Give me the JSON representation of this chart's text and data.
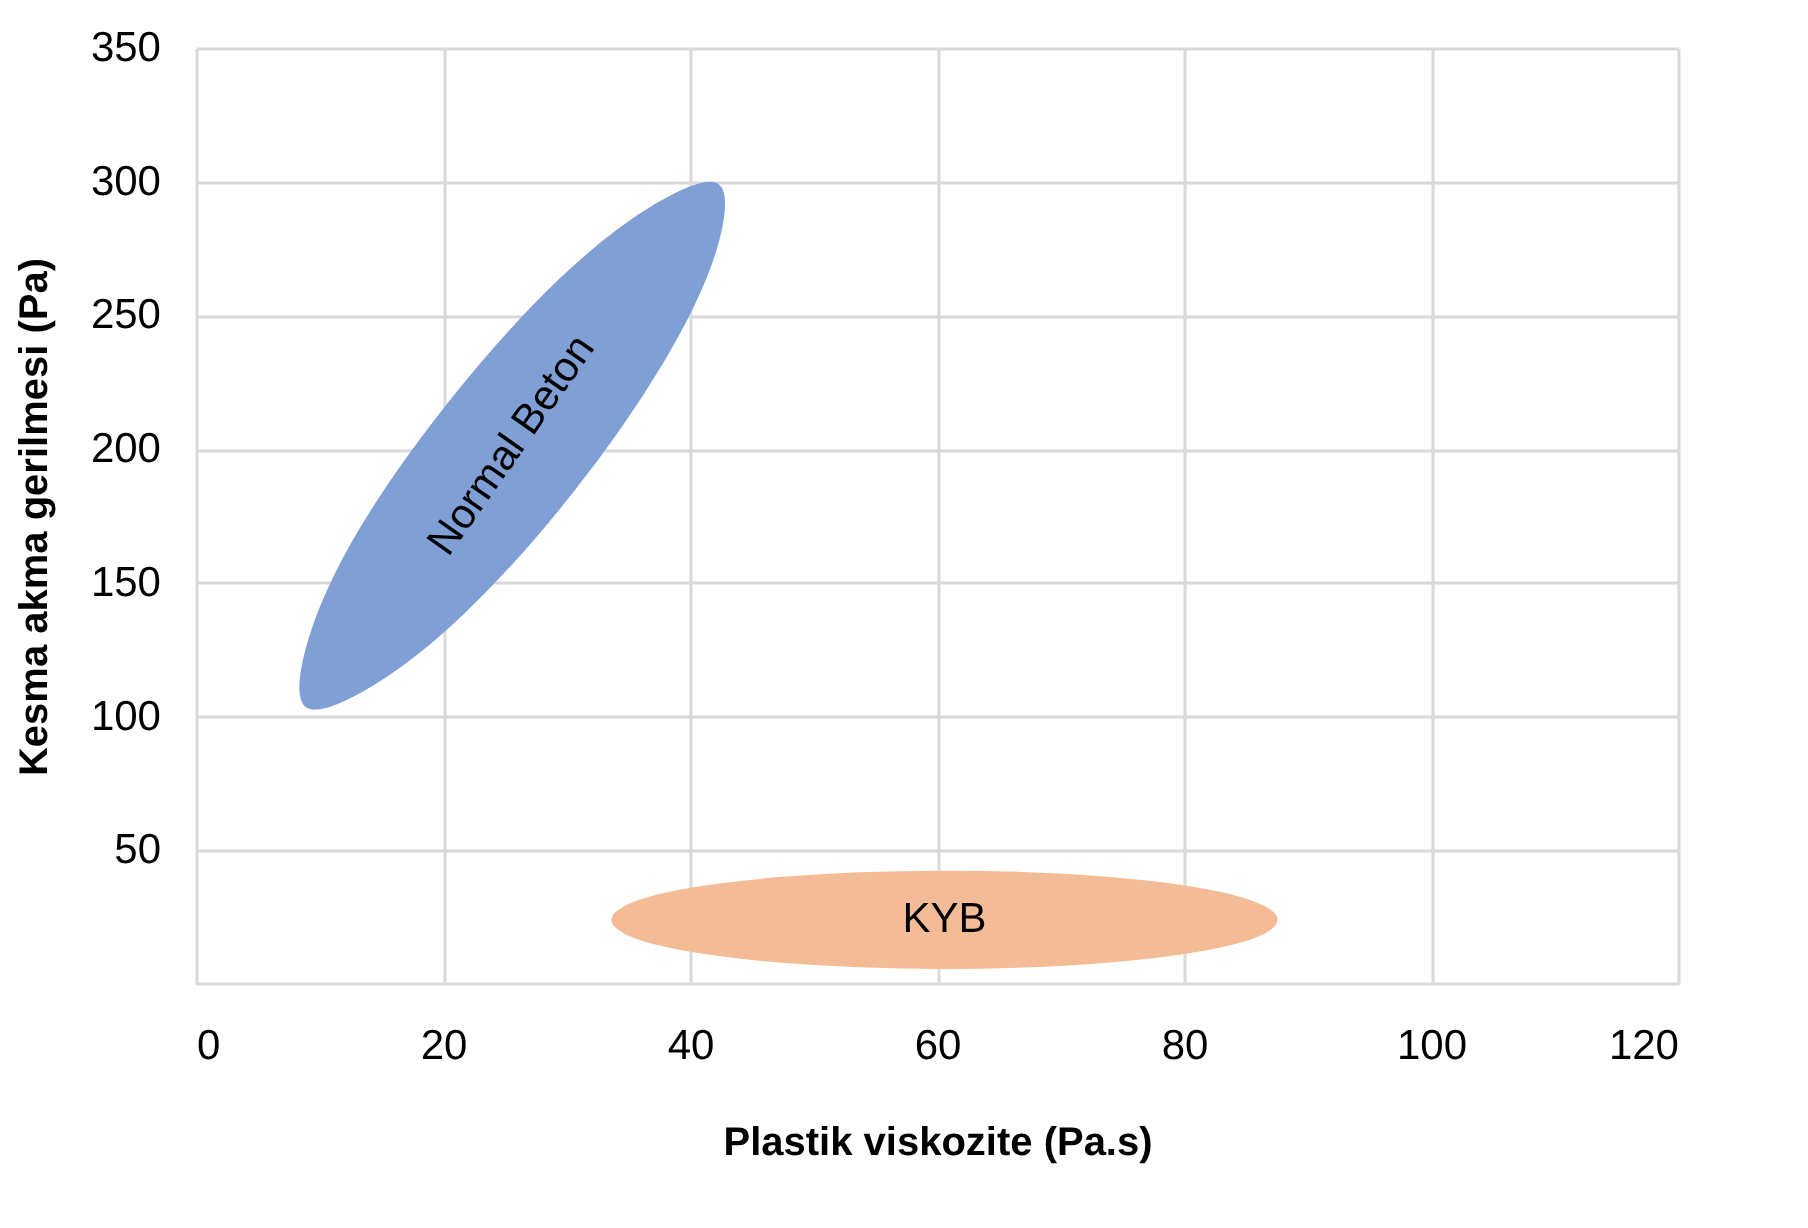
{
  "chart_data": {
    "type": "area",
    "xlabel": "Plastik viskozite (Pa.s)",
    "ylabel": "Kesma akma gerilmesi (Pa)",
    "xlim": [
      0,
      120
    ],
    "xticks": [
      0,
      20,
      40,
      60,
      80,
      100,
      120
    ],
    "ylim": [
      0,
      350
    ],
    "yticks": [
      50,
      100,
      150,
      200,
      250,
      300,
      350
    ],
    "grid": true,
    "marker": "none",
    "series": [
      {
        "name": "Normal Beton",
        "color": "#7f9fd5",
        "x": [
          42.3,
          42.0,
          37.8,
          30.4,
          21.7,
          14.0,
          8.9,
          9.2,
          13.3,
          20.8,
          29.5,
          37.2
        ],
        "values": [
          298.7,
          273.5,
          232.7,
          183.6,
          138.9,
          111.1,
          104,
          129.2,
          170.0,
          219.1,
          263.5,
          291.3
        ]
      },
      {
        "name": "KYB",
        "color": "#f4bc96",
        "x": [
          87.5,
          83.9,
          74,
          60.6,
          47.2,
          37.3,
          33.7,
          37.3,
          47.2,
          60.6,
          74,
          83.9
        ],
        "values": [
          24,
          33,
          39.6,
          42,
          39.6,
          33,
          24,
          15,
          8.4,
          6,
          8.4,
          15
        ]
      }
    ]
  }
}
